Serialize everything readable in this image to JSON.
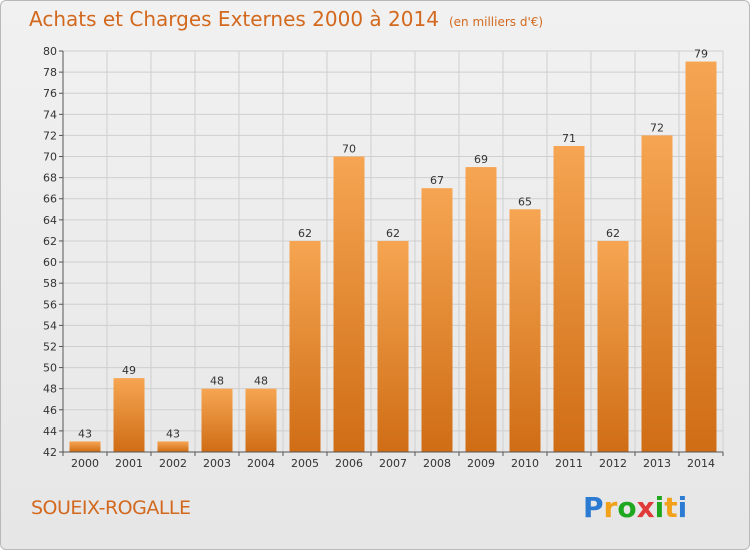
{
  "title": "Achats et Charges Externes 2000 à 2014",
  "title_unit": "(en milliers d'€)",
  "commune": "SOUEIX-ROGALLE",
  "brand": [
    "P",
    "r",
    "o",
    "x",
    "i",
    "t",
    "i"
  ],
  "brand_colors": [
    "#2b7bd3",
    "#f2a21a",
    "#1fa81f",
    "#e03a3a",
    "#1fa81f",
    "#f2a21a",
    "#2b7bd3"
  ],
  "colors": {
    "bar_top": "#f6a552",
    "bar_bottom": "#cf6d15",
    "title": "#d2691e",
    "grid": "#cfcfcf"
  },
  "chart_data": {
    "type": "bar",
    "categories": [
      "2000",
      "2001",
      "2002",
      "2003",
      "2004",
      "2005",
      "2006",
      "2007",
      "2008",
      "2009",
      "2010",
      "2011",
      "2012",
      "2013",
      "2014"
    ],
    "values": [
      43,
      49,
      43,
      48,
      48,
      62,
      70,
      62,
      67,
      69,
      65,
      71,
      62,
      72,
      79
    ],
    "ylim": [
      42,
      80
    ],
    "yticks": [
      42,
      44,
      46,
      48,
      50,
      52,
      54,
      56,
      58,
      60,
      62,
      64,
      66,
      68,
      70,
      72,
      74,
      76,
      78,
      80
    ],
    "grid": true,
    "xlabel": "",
    "ylabel": ""
  }
}
